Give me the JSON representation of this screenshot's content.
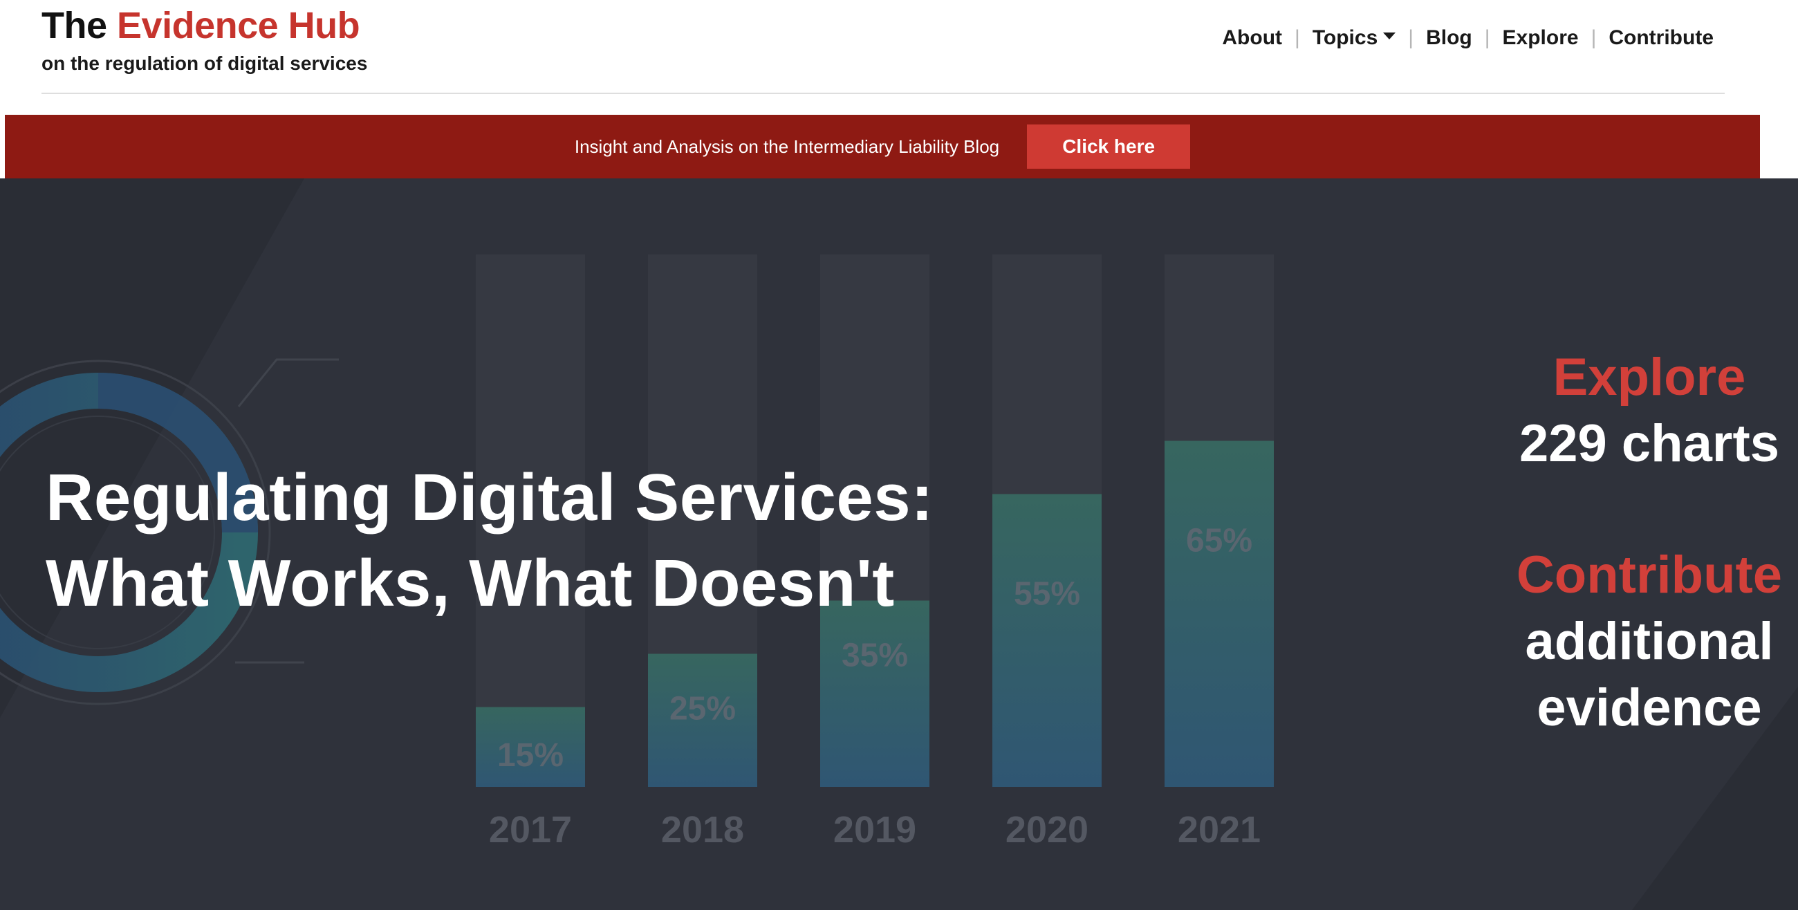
{
  "header": {
    "brand_prefix": "The",
    "brand_name": "Evidence Hub",
    "tagline": "on the regulation of digital services"
  },
  "nav": {
    "items": [
      "About",
      "Topics",
      "Blog",
      "Explore",
      "Contribute"
    ],
    "separator": "|"
  },
  "announcement": {
    "text": "Insight and Analysis on the Intermediary Liability Blog",
    "button_label": "Click here"
  },
  "hero": {
    "title_line1": "Regulating Digital Services:",
    "title_line2": "What Works, What Doesn't",
    "explore_label": "Explore",
    "explore_count": "229 charts",
    "contribute_label": "Contribute",
    "contribute_line1": "additional",
    "contribute_line2": "evidence",
    "background_image": {
      "icon": "faded-bar-chart-graphic",
      "years": [
        "2017",
        "2018",
        "2019",
        "2020",
        "2021"
      ],
      "percent_labels": [
        "15%",
        "25%",
        "35%",
        "55%",
        "65%"
      ]
    }
  },
  "colors": {
    "brand_red": "#c6342d",
    "banner_red": "#8e1a13",
    "button_red": "#cf3a33",
    "hero_bg": "#2f323b",
    "bar_blue": "#2f5673",
    "bar_teal": "#37665f"
  }
}
